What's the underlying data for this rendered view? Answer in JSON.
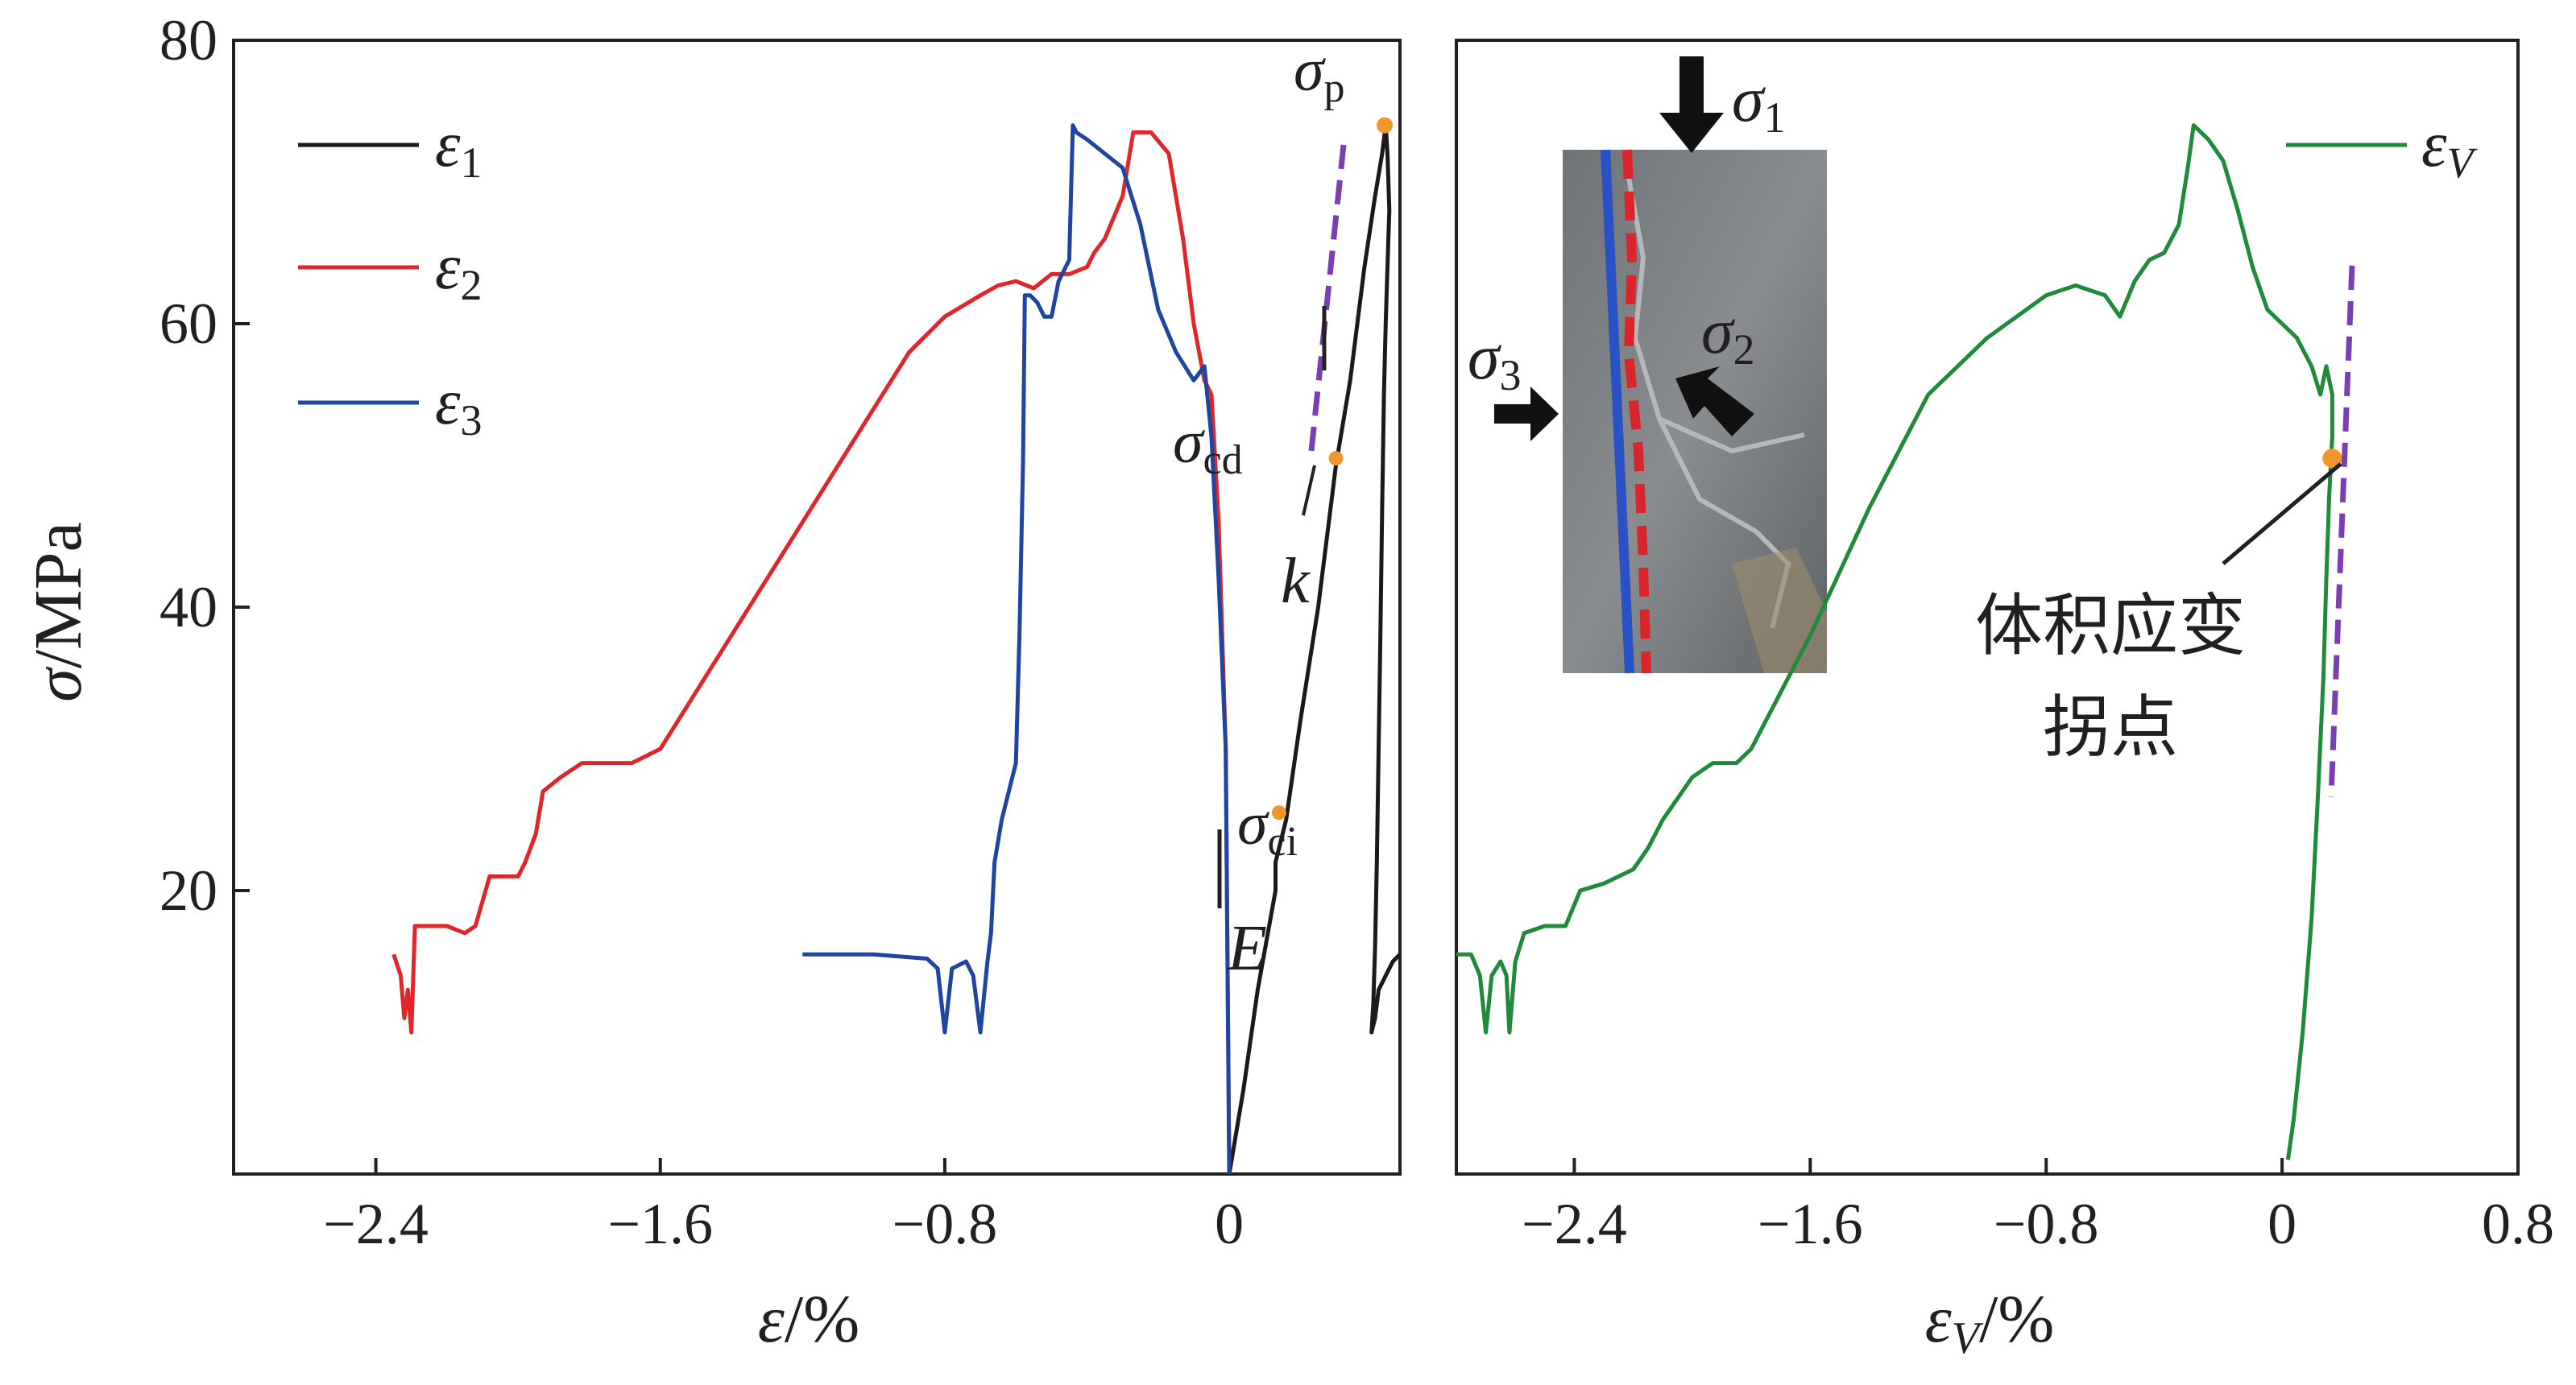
{
  "colors": {
    "eps1": "#1a1a1a",
    "eps2": "#e0252b",
    "eps3": "#1f45a0",
    "epsV": "#1e8a3a",
    "marker": "#f0962b",
    "tangent": "#7a3fb0",
    "axis": "#231f20"
  },
  "chart_data": [
    {
      "type": "line",
      "panel": "left",
      "xlabel": "ε/%",
      "ylabel": "σ/MPa",
      "xlim": [
        -2.8,
        0.48
      ],
      "ylim": [
        0,
        80
      ],
      "xticks": [
        "−2.4",
        "−1.6",
        "−0.8",
        "0"
      ],
      "xtick_values": [
        -2.4,
        -1.6,
        -0.8,
        0
      ],
      "yticks": [
        "20",
        "40",
        "60",
        "80"
      ],
      "ytick_values": [
        20,
        40,
        60,
        80
      ],
      "legend_position": "top-left",
      "series": [
        {
          "name": "ε₁",
          "color_key": "eps1",
          "points": [
            [
              0,
              0
            ],
            [
              0.04,
              6
            ],
            [
              0.08,
              13
            ],
            [
              0.13,
              20
            ],
            [
              0.13,
              22
            ],
            [
              0.16,
              25
            ],
            [
              0.2,
              32
            ],
            [
              0.25,
              40
            ],
            [
              0.3,
              50
            ],
            [
              0.34,
              56
            ],
            [
              0.38,
              64
            ],
            [
              0.41,
              69
            ],
            [
              0.43,
              72
            ],
            [
              0.44,
              74
            ],
            [
              0.445,
              72
            ],
            [
              0.45,
              68
            ],
            [
              0.445,
              64
            ],
            [
              0.44,
              60
            ],
            [
              0.435,
              55
            ],
            [
              0.43,
              47
            ],
            [
              0.425,
              38
            ],
            [
              0.42,
              30
            ],
            [
              0.415,
              22
            ],
            [
              0.41,
              16
            ],
            [
              0.405,
              12
            ],
            [
              0.4,
              10
            ],
            [
              0.41,
              11
            ],
            [
              0.42,
              13
            ],
            [
              0.44,
              14
            ],
            [
              0.46,
              15
            ],
            [
              0.48,
              15.5
            ]
          ]
        },
        {
          "name": "ε₂",
          "color_key": "eps2",
          "points": [
            [
              -2.35,
              15.5
            ],
            [
              -2.33,
              14
            ],
            [
              -2.32,
              11
            ],
            [
              -2.31,
              13
            ],
            [
              -2.3,
              10
            ],
            [
              -2.29,
              17.5
            ],
            [
              -2.25,
              17.5
            ],
            [
              -2.2,
              17.5
            ],
            [
              -2.15,
              17
            ],
            [
              -2.12,
              17.5
            ],
            [
              -2.08,
              21
            ],
            [
              -2.0,
              21
            ],
            [
              -1.98,
              22
            ],
            [
              -1.95,
              24
            ],
            [
              -1.93,
              27
            ],
            [
              -1.88,
              28
            ],
            [
              -1.82,
              29
            ],
            [
              -1.75,
              29
            ],
            [
              -1.68,
              29
            ],
            [
              -1.6,
              30
            ],
            [
              -1.4,
              38
            ],
            [
              -1.2,
              46
            ],
            [
              -1.0,
              54
            ],
            [
              -0.9,
              58
            ],
            [
              -0.8,
              60.5
            ],
            [
              -0.7,
              62
            ],
            [
              -0.65,
              62.7
            ],
            [
              -0.6,
              63
            ],
            [
              -0.55,
              62.5
            ],
            [
              -0.5,
              63.5
            ],
            [
              -0.45,
              63.5
            ],
            [
              -0.4,
              64
            ],
            [
              -0.38,
              65
            ],
            [
              -0.35,
              66
            ],
            [
              -0.3,
              69
            ],
            [
              -0.27,
              73.5
            ],
            [
              -0.22,
              73.5
            ],
            [
              -0.17,
              72
            ],
            [
              -0.13,
              66
            ],
            [
              -0.1,
              60
            ],
            [
              -0.07,
              56
            ],
            [
              -0.05,
              55
            ],
            [
              -0.03,
              46
            ],
            [
              -0.01,
              30
            ],
            [
              0,
              0
            ]
          ]
        },
        {
          "name": "ε₃",
          "color_key": "eps3",
          "points": [
            [
              -1.2,
              15.5
            ],
            [
              -1.0,
              15.5
            ],
            [
              -0.85,
              15.2
            ],
            [
              -0.82,
              14.5
            ],
            [
              -0.8,
              10
            ],
            [
              -0.78,
              14.5
            ],
            [
              -0.74,
              15
            ],
            [
              -0.72,
              14
            ],
            [
              -0.7,
              10
            ],
            [
              -0.68,
              15
            ],
            [
              -0.67,
              17
            ],
            [
              -0.66,
              22
            ],
            [
              -0.64,
              25
            ],
            [
              -0.62,
              27
            ],
            [
              -0.6,
              29
            ],
            [
              -0.59,
              38
            ],
            [
              -0.58,
              50
            ],
            [
              -0.575,
              62
            ],
            [
              -0.56,
              62
            ],
            [
              -0.54,
              61.5
            ],
            [
              -0.52,
              60.5
            ],
            [
              -0.5,
              60.5
            ],
            [
              -0.48,
              63
            ],
            [
              -0.45,
              64.5
            ],
            [
              -0.44,
              74
            ],
            [
              -0.43,
              73.5
            ],
            [
              -0.4,
              73
            ],
            [
              -0.35,
              72
            ],
            [
              -0.3,
              71
            ],
            [
              -0.25,
              67
            ],
            [
              -0.2,
              61
            ],
            [
              -0.15,
              58
            ],
            [
              -0.1,
              56
            ],
            [
              -0.07,
              57
            ],
            [
              -0.05,
              52
            ],
            [
              -0.03,
              42
            ],
            [
              -0.01,
              30
            ],
            [
              0,
              0
            ]
          ]
        }
      ],
      "annotations": [
        {
          "label": "σ",
          "sub": "p",
          "x": 0.437,
          "y": 74
        },
        {
          "label": "σ",
          "sub": "cd",
          "x": 0.3,
          "y": 50.5
        },
        {
          "label": "σ",
          "sub": "ci",
          "x": 0.14,
          "y": 25.5
        },
        {
          "label": "k"
        },
        {
          "label": "E"
        }
      ]
    },
    {
      "type": "line",
      "panel": "right",
      "xlabel": "εV/%",
      "xlim": [
        -2.8,
        0.8
      ],
      "ylim": [
        0,
        80
      ],
      "xticks": [
        "−2.4",
        "−1.6",
        "−0.8",
        "0",
        "0.8"
      ],
      "xtick_values": [
        -2.4,
        -1.6,
        -0.8,
        0,
        0.8
      ],
      "legend_position": "top-right",
      "series": [
        {
          "name": "εV",
          "color_key": "epsV",
          "points": [
            [
              -2.8,
              15.5
            ],
            [
              -2.75,
              15.5
            ],
            [
              -2.72,
              14
            ],
            [
              -2.7,
              10
            ],
            [
              -2.68,
              14
            ],
            [
              -2.65,
              15
            ],
            [
              -2.63,
              14
            ],
            [
              -2.62,
              10
            ],
            [
              -2.6,
              15
            ],
            [
              -2.57,
              17
            ],
            [
              -2.5,
              17.5
            ],
            [
              -2.43,
              17.5
            ],
            [
              -2.38,
              20
            ],
            [
              -2.3,
              20.5
            ],
            [
              -2.2,
              21.5
            ],
            [
              -2.15,
              23
            ],
            [
              -2.1,
              25
            ],
            [
              -2.0,
              28
            ],
            [
              -1.93,
              29
            ],
            [
              -1.85,
              29
            ],
            [
              -1.8,
              30
            ],
            [
              -1.6,
              38
            ],
            [
              -1.4,
              47
            ],
            [
              -1.2,
              55
            ],
            [
              -1.0,
              59
            ],
            [
              -0.8,
              62
            ],
            [
              -0.7,
              62.7
            ],
            [
              -0.6,
              62
            ],
            [
              -0.55,
              60.5
            ],
            [
              -0.5,
              63
            ],
            [
              -0.45,
              64.5
            ],
            [
              -0.4,
              65
            ],
            [
              -0.35,
              67
            ],
            [
              -0.32,
              71
            ],
            [
              -0.3,
              74
            ],
            [
              -0.25,
              73
            ],
            [
              -0.2,
              71.5
            ],
            [
              -0.15,
              68
            ],
            [
              -0.1,
              64
            ],
            [
              -0.05,
              61
            ],
            [
              0.0,
              60
            ],
            [
              0.05,
              59
            ],
            [
              0.1,
              57
            ],
            [
              0.13,
              55
            ],
            [
              0.15,
              57
            ],
            [
              0.17,
              55
            ],
            [
              0.17,
              52
            ],
            [
              0.16,
              48
            ],
            [
              0.15,
              42
            ],
            [
              0.14,
              35
            ],
            [
              0.12,
              26
            ],
            [
              0.1,
              18
            ],
            [
              0.07,
              10
            ],
            [
              0.04,
              4
            ],
            [
              0.02,
              1
            ]
          ]
        }
      ],
      "annotations": [
        {
          "label": "体积应变",
          "line2": "拐点",
          "x": 0.17,
          "y": 50.5
        }
      ],
      "inset_labels": {
        "s1_sub": "1",
        "s2_sub": "2",
        "s3_sub": "3"
      }
    }
  ],
  "legend": {
    "left": [
      {
        "sym": "ε",
        "sub": "1"
      },
      {
        "sym": "ε",
        "sub": "2"
      },
      {
        "sym": "ε",
        "sub": "3"
      }
    ],
    "right": [
      {
        "sym": "ε",
        "sub": "V"
      }
    ]
  },
  "axis_labels": {
    "left_y": {
      "sym": "σ",
      "unit": "/MPa"
    },
    "left_x": {
      "sym": "ε",
      "unit": "/%"
    },
    "right_x": {
      "sym": "ε",
      "sub": "V",
      "unit": "/%"
    }
  },
  "annotation_text": {
    "sigma": "σ",
    "sub_p": "p",
    "sub_cd": "cd",
    "sub_ci": "ci",
    "k": "k",
    "E": "E",
    "inflection_line1": "体积应变",
    "inflection_line2": "拐点"
  }
}
